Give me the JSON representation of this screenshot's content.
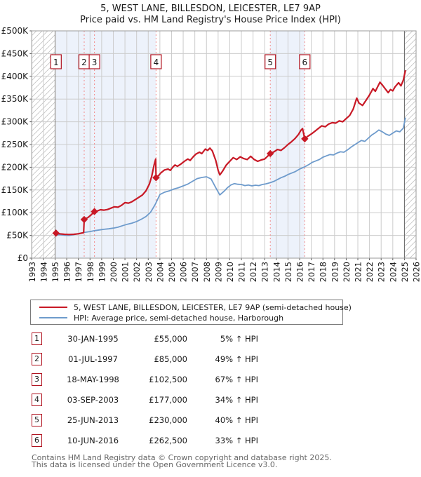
{
  "title": {
    "line1": "5, WEST LANE, BILLESDON, LEICESTER, LE7 9AP",
    "line2": "Price paid vs. HM Land Registry's House Price Index (HPI)"
  },
  "chart_data": {
    "type": "line",
    "title": "Price paid vs. HM Land Registry's House Price Index (HPI)",
    "xlabel": "",
    "ylabel": "",
    "legend_position": "bottom",
    "grid": true,
    "x_axis": {
      "min": 1993,
      "max": 2026,
      "tick_years": [
        1993,
        1994,
        1995,
        1996,
        1997,
        1998,
        1999,
        2000,
        2001,
        2002,
        2003,
        2004,
        2005,
        2006,
        2007,
        2008,
        2009,
        2010,
        2011,
        2012,
        2013,
        2014,
        2015,
        2016,
        2017,
        2018,
        2019,
        2020,
        2021,
        2022,
        2023,
        2024,
        2025,
        2026
      ]
    },
    "y_axis": {
      "min": 0,
      "max": 500000,
      "tick_step": 50000,
      "tick_labels": [
        "£0",
        "£50K",
        "£100K",
        "£150K",
        "£200K",
        "£250K",
        "£300K",
        "£350K",
        "£400K",
        "£450K",
        "£500K"
      ]
    },
    "hatched_no_data": [
      {
        "from": 1993,
        "to": 1995
      },
      {
        "from": 2025.0,
        "to": 2026
      }
    ],
    "boundaries": [
      1995,
      2025.0
    ],
    "shaded_bands": [
      {
        "from": 1995.08,
        "to": 2003.67
      },
      {
        "from": 2013.48,
        "to": 2016.44
      }
    ],
    "colors": {
      "grid": "#cccccc",
      "band": "#edf2fb",
      "hatch": "#c3c3c3",
      "boundary": "#666666",
      "dashed_sale_line": "#f28c8c",
      "plot_border": "#999999",
      "axis_text": "#1a1a1a",
      "marker_box_border": "#b0111e"
    },
    "series": [
      {
        "name": "HPI: Average price, semi-detached house, Harborough",
        "color": "#6e9bcc",
        "width": 1.8,
        "points": [
          [
            1995.0,
            51000
          ],
          [
            1995.4,
            51500
          ],
          [
            1995.8,
            50500
          ],
          [
            1996.2,
            50000
          ],
          [
            1996.6,
            51500
          ],
          [
            1997.0,
            54000
          ],
          [
            1997.5,
            56500
          ],
          [
            1998.0,
            58500
          ],
          [
            1998.4,
            60500
          ],
          [
            1998.8,
            62000
          ],
          [
            1999.2,
            63500
          ],
          [
            1999.6,
            64500
          ],
          [
            2000.0,
            66000
          ],
          [
            2000.4,
            68000
          ],
          [
            2000.8,
            71500
          ],
          [
            2001.2,
            74500
          ],
          [
            2001.6,
            77000
          ],
          [
            2002.0,
            80500
          ],
          [
            2002.4,
            85500
          ],
          [
            2002.8,
            91500
          ],
          [
            2003.2,
            101000
          ],
          [
            2003.6,
            118000
          ],
          [
            2004.0,
            140000
          ],
          [
            2004.4,
            145000
          ],
          [
            2004.8,
            148000
          ],
          [
            2005.2,
            152000
          ],
          [
            2005.6,
            155000
          ],
          [
            2006.0,
            159000
          ],
          [
            2006.4,
            163000
          ],
          [
            2006.8,
            169000
          ],
          [
            2007.2,
            175000
          ],
          [
            2007.6,
            177500
          ],
          [
            2008.0,
            179000
          ],
          [
            2008.4,
            174000
          ],
          [
            2008.8,
            155000
          ],
          [
            2009.15,
            139000
          ],
          [
            2009.5,
            147000
          ],
          [
            2009.8,
            155000
          ],
          [
            2010.1,
            161000
          ],
          [
            2010.4,
            164000
          ],
          [
            2010.7,
            162500
          ],
          [
            2011.0,
            162000
          ],
          [
            2011.3,
            159500
          ],
          [
            2011.6,
            161000
          ],
          [
            2011.9,
            159000
          ],
          [
            2012.2,
            160500
          ],
          [
            2012.5,
            159500
          ],
          [
            2012.8,
            162000
          ],
          [
            2013.1,
            163500
          ],
          [
            2013.48,
            166000
          ],
          [
            2013.8,
            169000
          ],
          [
            2014.1,
            173000
          ],
          [
            2014.4,
            177000
          ],
          [
            2014.7,
            180000
          ],
          [
            2015.0,
            184000
          ],
          [
            2015.3,
            187000
          ],
          [
            2015.6,
            190000
          ],
          [
            2016.0,
            196000
          ],
          [
            2016.44,
            201000
          ],
          [
            2016.8,
            206000
          ],
          [
            2017.1,
            211000
          ],
          [
            2017.4,
            214000
          ],
          [
            2017.7,
            217000
          ],
          [
            2018.0,
            222000
          ],
          [
            2018.3,
            225000
          ],
          [
            2018.6,
            228000
          ],
          [
            2018.9,
            227000
          ],
          [
            2019.2,
            231000
          ],
          [
            2019.5,
            234000
          ],
          [
            2019.8,
            233000
          ],
          [
            2020.1,
            238000
          ],
          [
            2020.4,
            244000
          ],
          [
            2020.7,
            249000
          ],
          [
            2021.0,
            254000
          ],
          [
            2021.3,
            259000
          ],
          [
            2021.6,
            257000
          ],
          [
            2021.9,
            264000
          ],
          [
            2022.2,
            271000
          ],
          [
            2022.5,
            276000
          ],
          [
            2022.8,
            282000
          ],
          [
            2023.1,
            278000
          ],
          [
            2023.4,
            273000
          ],
          [
            2023.7,
            270000
          ],
          [
            2024.0,
            275000
          ],
          [
            2024.3,
            280000
          ],
          [
            2024.6,
            278000
          ],
          [
            2024.9,
            286000
          ],
          [
            2025.08,
            308000
          ]
        ]
      },
      {
        "name": "5, WEST LANE, BILLESDON, LEICESTER, LE7 9AP (semi-detached house)",
        "color": "#c81926",
        "width": 2.2,
        "points": [
          [
            1995.08,
            55000
          ],
          [
            1995.4,
            53500
          ],
          [
            1995.8,
            52500
          ],
          [
            1996.2,
            52000
          ],
          [
            1996.6,
            52500
          ],
          [
            1997.0,
            53500
          ],
          [
            1997.45,
            56000
          ],
          [
            1997.5,
            85000
          ],
          [
            1997.8,
            89000
          ],
          [
            1998.1,
            95000
          ],
          [
            1998.38,
            102500
          ],
          [
            1998.6,
            103500
          ],
          [
            1998.9,
            106500
          ],
          [
            1999.2,
            105500
          ],
          [
            1999.5,
            107000
          ],
          [
            1999.8,
            110000
          ],
          [
            2000.1,
            113000
          ],
          [
            2000.4,
            112000
          ],
          [
            2000.7,
            116000
          ],
          [
            2001.0,
            122000
          ],
          [
            2001.3,
            121000
          ],
          [
            2001.6,
            124000
          ],
          [
            2001.9,
            129000
          ],
          [
            2002.2,
            134000
          ],
          [
            2002.5,
            139000
          ],
          [
            2002.8,
            148000
          ],
          [
            2003.1,
            163000
          ],
          [
            2003.3,
            180000
          ],
          [
            2003.5,
            205000
          ],
          [
            2003.64,
            218000
          ],
          [
            2003.67,
            177000
          ],
          [
            2003.9,
            182000
          ],
          [
            2004.1,
            188000
          ],
          [
            2004.4,
            194000
          ],
          [
            2004.7,
            196000
          ],
          [
            2004.9,
            193000
          ],
          [
            2005.1,
            200000
          ],
          [
            2005.3,
            205000
          ],
          [
            2005.5,
            202000
          ],
          [
            2005.8,
            207000
          ],
          [
            2006.1,
            213000
          ],
          [
            2006.4,
            218000
          ],
          [
            2006.6,
            215000
          ],
          [
            2006.9,
            224000
          ],
          [
            2007.1,
            229000
          ],
          [
            2007.4,
            233000
          ],
          [
            2007.6,
            230000
          ],
          [
            2007.9,
            240000
          ],
          [
            2008.1,
            237000
          ],
          [
            2008.3,
            242000
          ],
          [
            2008.5,
            236000
          ],
          [
            2008.8,
            215000
          ],
          [
            2009.0,
            193000
          ],
          [
            2009.15,
            183000
          ],
          [
            2009.4,
            192000
          ],
          [
            2009.7,
            205000
          ],
          [
            2010.0,
            213000
          ],
          [
            2010.3,
            221000
          ],
          [
            2010.6,
            217000
          ],
          [
            2010.9,
            223000
          ],
          [
            2011.2,
            219000
          ],
          [
            2011.5,
            217000
          ],
          [
            2011.8,
            224000
          ],
          [
            2012.1,
            217000
          ],
          [
            2012.4,
            213000
          ],
          [
            2012.7,
            216000
          ],
          [
            2013.0,
            218000
          ],
          [
            2013.2,
            223000
          ],
          [
            2013.48,
            230000
          ],
          [
            2013.8,
            234000
          ],
          [
            2014.1,
            239000
          ],
          [
            2014.4,
            237000
          ],
          [
            2014.7,
            243000
          ],
          [
            2015.0,
            250000
          ],
          [
            2015.3,
            256000
          ],
          [
            2015.6,
            263000
          ],
          [
            2015.9,
            272000
          ],
          [
            2016.1,
            281000
          ],
          [
            2016.25,
            285000
          ],
          [
            2016.44,
            262500
          ],
          [
            2016.7,
            268000
          ],
          [
            2017.0,
            273000
          ],
          [
            2017.3,
            279000
          ],
          [
            2017.6,
            285000
          ],
          [
            2017.9,
            291000
          ],
          [
            2018.2,
            289000
          ],
          [
            2018.5,
            295000
          ],
          [
            2018.8,
            298000
          ],
          [
            2019.1,
            297000
          ],
          [
            2019.4,
            302000
          ],
          [
            2019.7,
            300000
          ],
          [
            2020.0,
            307000
          ],
          [
            2020.3,
            314000
          ],
          [
            2020.6,
            328000
          ],
          [
            2020.9,
            352000
          ],
          [
            2021.1,
            341000
          ],
          [
            2021.4,
            336000
          ],
          [
            2021.7,
            347000
          ],
          [
            2022.0,
            359000
          ],
          [
            2022.3,
            373000
          ],
          [
            2022.5,
            367000
          ],
          [
            2022.9,
            387000
          ],
          [
            2023.1,
            381000
          ],
          [
            2023.4,
            371000
          ],
          [
            2023.6,
            364000
          ],
          [
            2023.8,
            371000
          ],
          [
            2024.0,
            368000
          ],
          [
            2024.2,
            377000
          ],
          [
            2024.5,
            386000
          ],
          [
            2024.7,
            379000
          ],
          [
            2024.9,
            391000
          ],
          [
            2025.08,
            412000
          ]
        ]
      }
    ],
    "sales": [
      {
        "num": "1",
        "year": 1995.08,
        "price": 55000,
        "dashed": false
      },
      {
        "num": "2",
        "year": 1997.5,
        "price": 85000,
        "dashed": true
      },
      {
        "num": "3",
        "year": 1998.38,
        "price": 102500,
        "dashed": true
      },
      {
        "num": "4",
        "year": 2003.67,
        "price": 177000,
        "dashed": true
      },
      {
        "num": "5",
        "year": 2013.48,
        "price": 230000,
        "dashed": true
      },
      {
        "num": "6",
        "year": 2016.44,
        "price": 262500,
        "dashed": true
      }
    ]
  },
  "legend": {
    "items": [
      {
        "label": "5, WEST LANE, BILLESDON, LEICESTER, LE7 9AP (semi-detached house)",
        "color": "#c81926"
      },
      {
        "label": "HPI: Average price, semi-detached house, Harborough",
        "color": "#6e9bcc"
      }
    ]
  },
  "sales_table": {
    "rows": [
      {
        "num": "1",
        "date": "30-JAN-1995",
        "price": "£55,000",
        "hpi": "5% ↑ HPI"
      },
      {
        "num": "2",
        "date": "01-JUL-1997",
        "price": "£85,000",
        "hpi": "49% ↑ HPI"
      },
      {
        "num": "3",
        "date": "18-MAY-1998",
        "price": "£102,500",
        "hpi": "67% ↑ HPI"
      },
      {
        "num": "4",
        "date": "03-SEP-2003",
        "price": "£177,000",
        "hpi": "34% ↑ HPI"
      },
      {
        "num": "5",
        "date": "25-JUN-2013",
        "price": "£230,000",
        "hpi": "40% ↑ HPI"
      },
      {
        "num": "6",
        "date": "10-JUN-2016",
        "price": "£262,500",
        "hpi": "33% ↑ HPI"
      }
    ]
  },
  "footer": {
    "line1": "Contains HM Land Registry data © Crown copyright and database right 2025.",
    "line2": "This data is licensed under the Open Government Licence v3.0."
  }
}
